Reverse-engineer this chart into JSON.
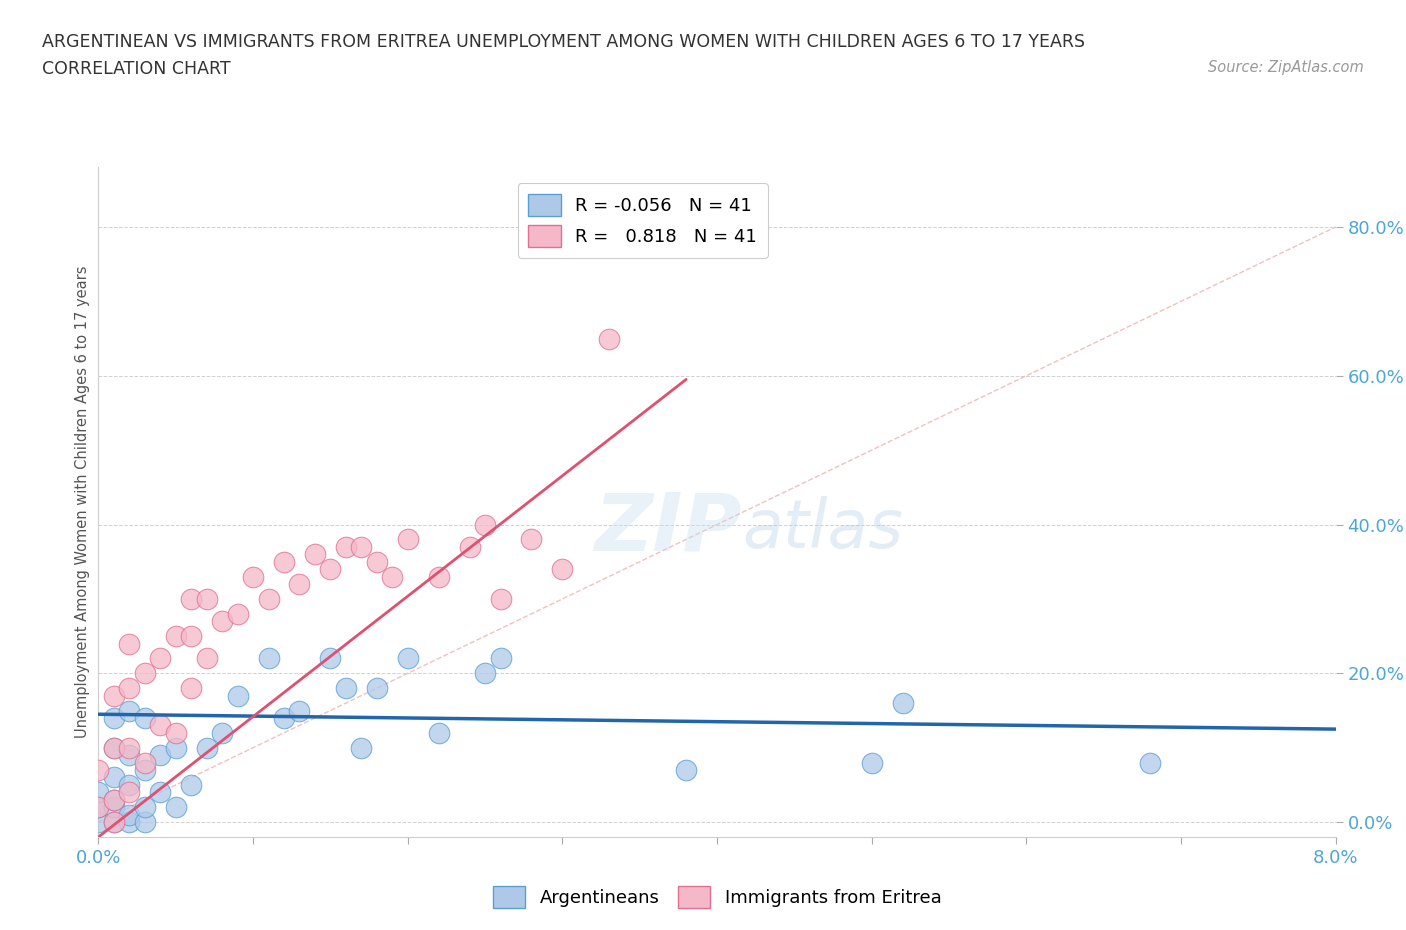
{
  "title_line1": "ARGENTINEAN VS IMMIGRANTS FROM ERITREA UNEMPLOYMENT AMONG WOMEN WITH CHILDREN AGES 6 TO 17 YEARS",
  "title_line2": "CORRELATION CHART",
  "source_text": "Source: ZipAtlas.com",
  "ylabel": "Unemployment Among Women with Children Ages 6 to 17 years",
  "xlim": [
    0.0,
    0.08
  ],
  "ylim": [
    -0.02,
    0.88
  ],
  "yticks": [
    0.0,
    0.2,
    0.4,
    0.6,
    0.8
  ],
  "xticks": [
    0.0,
    0.01,
    0.02,
    0.03,
    0.04,
    0.05,
    0.06,
    0.07,
    0.08
  ],
  "ytick_labels": [
    "0.0%",
    "20.0%",
    "40.0%",
    "60.0%",
    "80.0%"
  ],
  "xtick_labels": [
    "0.0%",
    "",
    "",
    "",
    "",
    "",
    "",
    "",
    "8.0%"
  ],
  "blue_color": "#aec9e8",
  "pink_color": "#f5b8c8",
  "blue_edge_color": "#5a9fd4",
  "pink_edge_color": "#e07090",
  "blue_line_color": "#2166ac",
  "pink_line_color": "#e05070",
  "diag_line_color": "#f0b0b0",
  "background_color": "#ffffff",
  "watermark_zip": "ZIP",
  "watermark_atlas": "atlas",
  "legend_R_blue": "-0.056",
  "legend_N_blue": "41",
  "legend_R_pink": "0.818",
  "legend_N_pink": "41",
  "blue_scatter_x": [
    0.0,
    0.0,
    0.0,
    0.001,
    0.001,
    0.001,
    0.001,
    0.001,
    0.001,
    0.002,
    0.002,
    0.002,
    0.002,
    0.002,
    0.003,
    0.003,
    0.003,
    0.003,
    0.004,
    0.004,
    0.005,
    0.005,
    0.006,
    0.007,
    0.008,
    0.009,
    0.011,
    0.012,
    0.013,
    0.015,
    0.016,
    0.017,
    0.018,
    0.02,
    0.022,
    0.025,
    0.026,
    0.038,
    0.05,
    0.052,
    0.068
  ],
  "blue_scatter_y": [
    0.0,
    0.02,
    0.04,
    0.0,
    0.02,
    0.03,
    0.06,
    0.1,
    0.14,
    0.0,
    0.01,
    0.05,
    0.09,
    0.15,
    0.0,
    0.02,
    0.07,
    0.14,
    0.04,
    0.09,
    0.02,
    0.1,
    0.05,
    0.1,
    0.12,
    0.17,
    0.22,
    0.14,
    0.15,
    0.22,
    0.18,
    0.1,
    0.18,
    0.22,
    0.12,
    0.2,
    0.22,
    0.07,
    0.08,
    0.16,
    0.08
  ],
  "pink_scatter_x": [
    0.0,
    0.0,
    0.001,
    0.001,
    0.001,
    0.001,
    0.002,
    0.002,
    0.002,
    0.002,
    0.003,
    0.003,
    0.004,
    0.004,
    0.005,
    0.005,
    0.006,
    0.006,
    0.006,
    0.007,
    0.007,
    0.008,
    0.009,
    0.01,
    0.011,
    0.012,
    0.013,
    0.014,
    0.015,
    0.016,
    0.017,
    0.018,
    0.019,
    0.02,
    0.022,
    0.024,
    0.025,
    0.026,
    0.028,
    0.03,
    0.033
  ],
  "pink_scatter_y": [
    0.02,
    0.07,
    0.0,
    0.03,
    0.1,
    0.17,
    0.04,
    0.1,
    0.18,
    0.24,
    0.08,
    0.2,
    0.13,
    0.22,
    0.12,
    0.25,
    0.18,
    0.25,
    0.3,
    0.22,
    0.3,
    0.27,
    0.28,
    0.33,
    0.3,
    0.35,
    0.32,
    0.36,
    0.34,
    0.37,
    0.37,
    0.35,
    0.33,
    0.38,
    0.33,
    0.37,
    0.4,
    0.3,
    0.38,
    0.34,
    0.65
  ],
  "blue_trend_x": [
    0.0,
    0.08
  ],
  "blue_trend_y": [
    0.145,
    0.125
  ],
  "pink_trend_x": [
    0.0,
    0.038
  ],
  "pink_trend_y": [
    -0.02,
    0.595
  ],
  "diag_line_x": [
    0.0,
    0.08
  ],
  "diag_line_y": [
    0.0,
    0.8
  ]
}
